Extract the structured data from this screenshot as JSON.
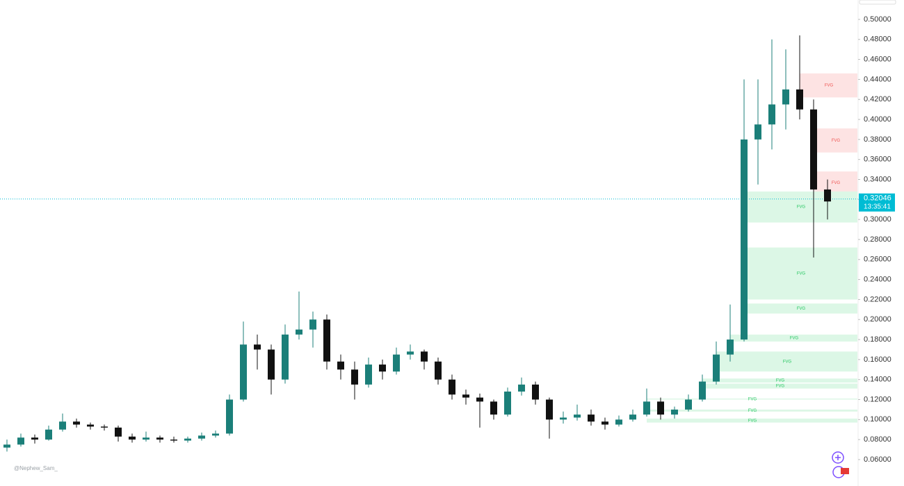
{
  "chart_data": {
    "type": "candlestick",
    "candles": [
      [
        0.072,
        0.08,
        0.068,
        0.075
      ],
      [
        0.075,
        0.086,
        0.073,
        0.082
      ],
      [
        0.082,
        0.085,
        0.076,
        0.08
      ],
      [
        0.08,
        0.094,
        0.079,
        0.09
      ],
      [
        0.09,
        0.106,
        0.088,
        0.098
      ],
      [
        0.098,
        0.101,
        0.092,
        0.095
      ],
      [
        0.095,
        0.097,
        0.09,
        0.093
      ],
      [
        0.093,
        0.095,
        0.089,
        0.092
      ],
      [
        0.092,
        0.094,
        0.078,
        0.083
      ],
      [
        0.083,
        0.086,
        0.077,
        0.08
      ],
      [
        0.08,
        0.088,
        0.078,
        0.082
      ],
      [
        0.082,
        0.084,
        0.077,
        0.08
      ],
      [
        0.08,
        0.083,
        0.077,
        0.079
      ],
      [
        0.079,
        0.083,
        0.077,
        0.081
      ],
      [
        0.081,
        0.087,
        0.079,
        0.084
      ],
      [
        0.084,
        0.089,
        0.082,
        0.086
      ],
      [
        0.086,
        0.125,
        0.084,
        0.12
      ],
      [
        0.12,
        0.198,
        0.118,
        0.175
      ],
      [
        0.175,
        0.185,
        0.15,
        0.17
      ],
      [
        0.17,
        0.175,
        0.125,
        0.14
      ],
      [
        0.14,
        0.195,
        0.136,
        0.185
      ],
      [
        0.185,
        0.228,
        0.18,
        0.19
      ],
      [
        0.19,
        0.208,
        0.172,
        0.2
      ],
      [
        0.2,
        0.205,
        0.15,
        0.158
      ],
      [
        0.158,
        0.165,
        0.14,
        0.15
      ],
      [
        0.15,
        0.158,
        0.12,
        0.135
      ],
      [
        0.135,
        0.162,
        0.132,
        0.155
      ],
      [
        0.155,
        0.16,
        0.14,
        0.148
      ],
      [
        0.148,
        0.172,
        0.145,
        0.165
      ],
      [
        0.165,
        0.175,
        0.16,
        0.168
      ],
      [
        0.168,
        0.17,
        0.15,
        0.158
      ],
      [
        0.158,
        0.162,
        0.135,
        0.14
      ],
      [
        0.14,
        0.145,
        0.12,
        0.125
      ],
      [
        0.125,
        0.13,
        0.115,
        0.122
      ],
      [
        0.122,
        0.126,
        0.092,
        0.118
      ],
      [
        0.118,
        0.12,
        0.1,
        0.105
      ],
      [
        0.105,
        0.132,
        0.103,
        0.128
      ],
      [
        0.128,
        0.142,
        0.124,
        0.135
      ],
      [
        0.135,
        0.138,
        0.115,
        0.12
      ],
      [
        0.12,
        0.122,
        0.081,
        0.1
      ],
      [
        0.1,
        0.108,
        0.096,
        0.102
      ],
      [
        0.102,
        0.115,
        0.099,
        0.105
      ],
      [
        0.105,
        0.11,
        0.094,
        0.098
      ],
      [
        0.098,
        0.102,
        0.09,
        0.095
      ],
      [
        0.095,
        0.104,
        0.093,
        0.1
      ],
      [
        0.1,
        0.11,
        0.098,
        0.105
      ],
      [
        0.105,
        0.131,
        0.103,
        0.118
      ],
      [
        0.118,
        0.122,
        0.1,
        0.105
      ],
      [
        0.105,
        0.113,
        0.101,
        0.11
      ],
      [
        0.11,
        0.125,
        0.108,
        0.12
      ],
      [
        0.12,
        0.145,
        0.118,
        0.138
      ],
      [
        0.138,
        0.178,
        0.135,
        0.165
      ],
      [
        0.165,
        0.215,
        0.158,
        0.18
      ],
      [
        0.18,
        0.44,
        0.178,
        0.38
      ],
      [
        0.38,
        0.44,
        0.335,
        0.395
      ],
      [
        0.395,
        0.48,
        0.37,
        0.415
      ],
      [
        0.415,
        0.47,
        0.39,
        0.43
      ],
      [
        0.43,
        0.484,
        0.4,
        0.41
      ],
      [
        0.41,
        0.42,
        0.262,
        0.33
      ],
      [
        0.33,
        0.34,
        0.3,
        0.318
      ]
    ],
    "up_color": "#1b7f79",
    "down_color": "#111111",
    "zones": [
      {
        "kind": "bearish",
        "low": 0.422,
        "high": 0.446,
        "label": "FVG",
        "color": "#fde3e3",
        "text_color": "#ef5350"
      },
      {
        "kind": "bearish",
        "low": 0.367,
        "high": 0.391,
        "label": "FVG",
        "color": "#fde3e3",
        "text_color": "#ef5350"
      },
      {
        "kind": "bearish",
        "low": 0.325,
        "high": 0.348,
        "label": "FVG",
        "color": "#fde3e3",
        "text_color": "#ef5350"
      },
      {
        "kind": "bullish",
        "low": 0.297,
        "high": 0.328,
        "label": "FVG",
        "color": "#dcf7e6",
        "text_color": "#22c55e"
      },
      {
        "kind": "bullish",
        "low": 0.22,
        "high": 0.272,
        "label": "FVG",
        "color": "#dcf7e6",
        "text_color": "#22c55e"
      },
      {
        "kind": "bullish",
        "low": 0.206,
        "high": 0.216,
        "label": "FVG",
        "color": "#dcf7e6",
        "text_color": "#22c55e"
      },
      {
        "kind": "bullish",
        "low": 0.178,
        "high": 0.185,
        "label": "FVG",
        "color": "#dcf7e6",
        "text_color": "#22c55e"
      },
      {
        "kind": "bullish",
        "low": 0.148,
        "high": 0.168,
        "label": "FVG",
        "color": "#dcf7e6",
        "text_color": "#22c55e"
      },
      {
        "kind": "bullish",
        "low": 0.137,
        "high": 0.141,
        "label": "FVG",
        "color": "#dcf7e6",
        "text_color": "#22c55e"
      },
      {
        "kind": "bullish",
        "low": 0.131,
        "high": 0.136,
        "label": "FVG",
        "color": "#dcf7e6",
        "text_color": "#22c55e"
      },
      {
        "kind": "bullish",
        "low": 0.12,
        "high": 0.121,
        "label": "FVG",
        "color": "#dcf7e6",
        "text_color": "#22c55e"
      },
      {
        "kind": "bullish",
        "low": 0.108,
        "high": 0.11,
        "label": "FVG",
        "color": "#dcf7e6",
        "text_color": "#22c55e"
      },
      {
        "kind": "bullish",
        "low": 0.097,
        "high": 0.101,
        "label": "FVG",
        "color": "#dcf7e6",
        "text_color": "#22c55e"
      }
    ],
    "last_price": 0.32046,
    "countdown": "13:35:41",
    "price_tag_color": "#00bcd4",
    "ylim": [
      0.0336,
      0.5194
    ],
    "yticks": [
      {
        "value": 0.06,
        "label": "0.06000"
      },
      {
        "value": 0.08,
        "label": "0.08000"
      },
      {
        "value": 0.1,
        "label": "0.10000"
      },
      {
        "value": 0.12,
        "label": "0.12000"
      },
      {
        "value": 0.14,
        "label": "0.14000"
      },
      {
        "value": 0.16,
        "label": "0.16000"
      },
      {
        "value": 0.18,
        "label": "0.18000"
      },
      {
        "value": 0.2,
        "label": "0.20000"
      },
      {
        "value": 0.22,
        "label": "0.22000"
      },
      {
        "value": 0.24,
        "label": "0.24000"
      },
      {
        "value": 0.26,
        "label": "0.26000"
      },
      {
        "value": 0.28,
        "label": "0.28000"
      },
      {
        "value": 0.3,
        "label": "0.30000"
      },
      {
        "value": 0.32,
        "label": "0.32000"
      },
      {
        "value": 0.34,
        "label": "0.34000"
      },
      {
        "value": 0.36,
        "label": "0.36000"
      },
      {
        "value": 0.38,
        "label": "0.38000"
      },
      {
        "value": 0.4,
        "label": "0.40000"
      },
      {
        "value": 0.42,
        "label": "0.42000"
      },
      {
        "value": 0.44,
        "label": "0.44000"
      },
      {
        "value": 0.46,
        "label": "0.46000"
      },
      {
        "value": 0.48,
        "label": "0.48000"
      },
      {
        "value": 0.5,
        "label": "0.50000"
      }
    ],
    "watermark": "@Nephew_Sam_"
  }
}
